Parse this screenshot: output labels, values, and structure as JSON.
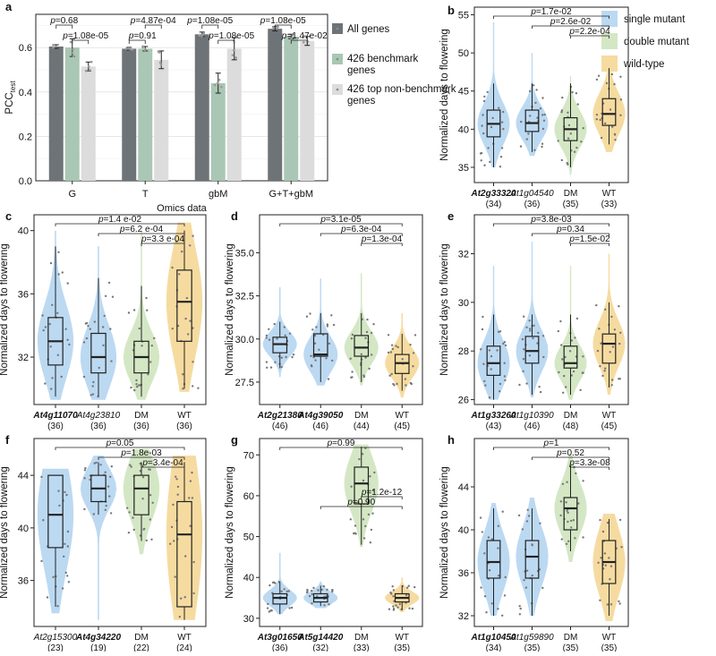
{
  "legend_right": {
    "items": [
      {
        "label": "single mutant",
        "color": "#bcd9f2"
      },
      {
        "label": "double mutant",
        "color": "#d4e7c4"
      },
      {
        "label": "wild-type",
        "color": "#f6dba0"
      }
    ]
  },
  "chart_data": [
    {
      "id": "a",
      "letter": "a",
      "type": "bar",
      "ylabel": "PCC",
      "ylabel_sub": "test",
      "xlabel": "Omics data",
      "ylim": [
        0,
        0.75
      ],
      "yticks": [
        "0.0",
        "0.2",
        "0.4",
        "0.6"
      ],
      "categories": [
        "G",
        "T",
        "gbM",
        "G+T+gbM"
      ],
      "series": [
        {
          "name": "All genes",
          "color": "#6e7378",
          "values": [
            0.605,
            0.595,
            0.66,
            0.685
          ],
          "err": [
            0.008,
            0.006,
            0.01,
            0.01
          ]
        },
        {
          "name": "426 benchmark genes",
          "color": "#a9c7b4",
          "values": [
            0.6,
            0.595,
            0.44,
            0.65
          ],
          "err": [
            0.04,
            0.01,
            0.045,
            0.01
          ]
        },
        {
          "name": "426 top non-benchmark genes",
          "color": "#dcdcdc",
          "values": [
            0.515,
            0.545,
            0.595,
            0.63
          ],
          "err": [
            0.02,
            0.04,
            0.05,
            0.02
          ]
        }
      ],
      "pvalues": [
        {
          "text": "p=0.68",
          "cat": 0,
          "from": 0,
          "to": 1,
          "level": 2
        },
        {
          "text": "p=1.08e-05",
          "cat": 0,
          "from": 1,
          "to": 2,
          "level": 1
        },
        {
          "text": "p=0.91",
          "cat": 1,
          "from": 0,
          "to": 1,
          "level": 1
        },
        {
          "text": "p=4.87e-04",
          "cat": 1,
          "from": 1,
          "to": 2,
          "level": 2
        },
        {
          "text": "p=1.08e-05",
          "cat": 2,
          "from": 0,
          "to": 1,
          "level": 2
        },
        {
          "text": "p=1.08e-05",
          "cat": 2,
          "from": 1,
          "to": 2,
          "level": 1
        },
        {
          "text": "p=1.08e-05",
          "cat": 3,
          "from": 0,
          "to": 1,
          "level": 2
        },
        {
          "text": "p=1.47e-02",
          "cat": 3,
          "from": 1,
          "to": 2,
          "level": 1
        }
      ]
    },
    {
      "id": "b",
      "letter": "b",
      "type": "violin",
      "ylabel": "Normalized days to flowering",
      "ylim": [
        33,
        56
      ],
      "yticks": [
        35,
        40,
        45,
        50,
        55
      ],
      "groups": [
        {
          "gene": "At2g33320",
          "bold": true,
          "n": "(34)",
          "kind": "single",
          "q1": 39,
          "median": 40.7,
          "q3": 42.5,
          "min": 35,
          "max": 46,
          "vmin": 35,
          "vmax": 54
        },
        {
          "gene": "At1g04540",
          "bold": false,
          "n": "(36)",
          "kind": "single",
          "q1": 39.7,
          "median": 40.8,
          "q3": 42.5,
          "min": 37,
          "max": 46,
          "vmin": 36.5,
          "vmax": 50
        },
        {
          "gene": "DM",
          "bold": false,
          "n": "(35)",
          "kind": "double",
          "q1": 38.5,
          "median": 40,
          "q3": 41.5,
          "min": 35,
          "max": 46,
          "vmin": 34,
          "vmax": 47
        },
        {
          "gene": "WT",
          "bold": false,
          "n": "(33)",
          "kind": "wt",
          "q1": 40.5,
          "median": 42,
          "q3": 44,
          "min": 38,
          "max": 48,
          "vmin": 37,
          "vmax": 49
        }
      ],
      "pvalues": [
        {
          "text": "p=1.7e-02",
          "from": 0,
          "to": 3,
          "row": 0
        },
        {
          "text": "p=2.6e-02",
          "from": 1,
          "to": 3,
          "row": 1
        },
        {
          "text": "p=2.2e-04",
          "from": 2,
          "to": 3,
          "row": 2
        }
      ]
    },
    {
      "id": "c",
      "letter": "c",
      "type": "violin",
      "ylabel": "Normalized days to flowering",
      "ylim": [
        29,
        41
      ],
      "yticks": [
        32,
        36,
        40
      ],
      "groups": [
        {
          "gene": "At4g11070",
          "bold": true,
          "n": "(36)",
          "kind": "single",
          "q1": 31.5,
          "median": 33,
          "q3": 34.5,
          "min": 29.5,
          "max": 39,
          "vmin": 29.3,
          "vmax": 40
        },
        {
          "gene": "At4g23810",
          "bold": false,
          "n": "(36)",
          "kind": "single",
          "q1": 31,
          "median": 32,
          "q3": 33.5,
          "min": 29.5,
          "max": 37,
          "vmin": 29.3,
          "vmax": 39
        },
        {
          "gene": "DM",
          "bold": false,
          "n": "(36)",
          "kind": "double",
          "q1": 31,
          "median": 32,
          "q3": 33,
          "min": 29.5,
          "max": 36.5,
          "vmin": 29.3,
          "vmax": 40
        },
        {
          "gene": "WT",
          "bold": false,
          "n": "(36)",
          "kind": "wt",
          "q1": 33,
          "median": 35.5,
          "q3": 37.5,
          "min": 30,
          "max": 40,
          "vmin": 29.8,
          "vmax": 40.5
        }
      ],
      "pvalues": [
        {
          "text": "p=1.4 e-02",
          "from": 0,
          "to": 3,
          "row": 0
        },
        {
          "text": "p=6.2 e-04",
          "from": 1,
          "to": 3,
          "row": 1
        },
        {
          "text": "p=3.3 e-04",
          "from": 2,
          "to": 3,
          "row": 2
        }
      ]
    },
    {
      "id": "d",
      "letter": "d",
      "type": "violin",
      "ylabel": "Normalized days to flowering",
      "ylim": [
        26.2,
        37.2
      ],
      "yticks": [
        27.5,
        30.0,
        32.5,
        35.0
      ],
      "groups": [
        {
          "gene": "At2g21380",
          "bold": true,
          "n": "(46)",
          "kind": "single",
          "q1": 29.2,
          "median": 29.7,
          "q3": 30.1,
          "min": 28.3,
          "max": 31,
          "vmin": 27.8,
          "vmax": 33
        },
        {
          "gene": "At4g39050",
          "bold": true,
          "n": "(46)",
          "kind": "single",
          "q1": 29,
          "median": 29.1,
          "q3": 30.3,
          "min": 27.5,
          "max": 31.5,
          "vmin": 27.3,
          "vmax": 33.5
        },
        {
          "gene": "DM",
          "bold": false,
          "n": "(44)",
          "kind": "double",
          "q1": 29,
          "median": 29.5,
          "q3": 30.2,
          "min": 27.5,
          "max": 31.5,
          "vmin": 27.3,
          "vmax": 33.8
        },
        {
          "gene": "WT",
          "bold": false,
          "n": "(45)",
          "kind": "wt",
          "q1": 28,
          "median": 28.6,
          "q3": 29.1,
          "min": 27,
          "max": 30.3,
          "vmin": 26.6,
          "vmax": 31.5
        }
      ],
      "pvalues": [
        {
          "text": "p=3.1e-05",
          "from": 0,
          "to": 3,
          "row": 0
        },
        {
          "text": "p=6.3e-04",
          "from": 1,
          "to": 3,
          "row": 1
        },
        {
          "text": "p=1.3e-04",
          "from": 2,
          "to": 3,
          "row": 2
        }
      ]
    },
    {
      "id": "e",
      "letter": "e",
      "type": "violin",
      "ylabel": "Normalized days to flowering",
      "ylim": [
        25.8,
        33.6
      ],
      "yticks": [
        26,
        28,
        30,
        32
      ],
      "groups": [
        {
          "gene": "At1g33260",
          "bold": true,
          "n": "(43)",
          "kind": "single",
          "q1": 27,
          "median": 27.5,
          "q3": 28.2,
          "min": 26,
          "max": 29.5,
          "vmin": 26,
          "vmax": 31.5
        },
        {
          "gene": "At1g10390",
          "bold": false,
          "n": "(46)",
          "kind": "single",
          "q1": 27.5,
          "median": 28,
          "q3": 28.6,
          "min": 26.2,
          "max": 29.5,
          "vmin": 26.1,
          "vmax": 32.5
        },
        {
          "gene": "DM",
          "bold": false,
          "n": "(48)",
          "kind": "double",
          "q1": 27.3,
          "median": 27.5,
          "q3": 28.2,
          "min": 26.2,
          "max": 29.5,
          "vmin": 26,
          "vmax": 31.5
        },
        {
          "gene": "WT",
          "bold": false,
          "n": "(45)",
          "kind": "wt",
          "q1": 27.5,
          "median": 28.3,
          "q3": 28.7,
          "min": 26.5,
          "max": 30,
          "vmin": 26.2,
          "vmax": 32
        }
      ],
      "pvalues": [
        {
          "text": "p=3.8e-03",
          "from": 0,
          "to": 3,
          "row": 0
        },
        {
          "text": "p=0.34",
          "from": 1,
          "to": 3,
          "row": 1
        },
        {
          "text": "p=1.5e-02",
          "from": 2,
          "to": 3,
          "row": 2
        }
      ]
    },
    {
      "id": "f",
      "letter": "f",
      "type": "violin",
      "ylabel": "Normalized days to flowering",
      "ylim": [
        32.5,
        46.8
      ],
      "yticks": [
        36,
        40,
        44
      ],
      "groups": [
        {
          "gene": "At2g15300",
          "bold": false,
          "n": "(23)",
          "kind": "single",
          "q1": 38.5,
          "median": 41,
          "q3": 44,
          "min": 34,
          "max": 44,
          "vmin": 33.5,
          "vmax": 44.5
        },
        {
          "gene": "At4g34220",
          "bold": true,
          "n": "(19)",
          "kind": "single",
          "q1": 42,
          "median": 43,
          "q3": 44,
          "min": 41,
          "max": 45,
          "vmin": 33,
          "vmax": 45.5
        },
        {
          "gene": "DM",
          "bold": false,
          "n": "(22)",
          "kind": "double",
          "q1": 41,
          "median": 43,
          "q3": 44,
          "min": 39,
          "max": 45,
          "vmin": 38,
          "vmax": 46
        },
        {
          "gene": "WT",
          "bold": false,
          "n": "(24)",
          "kind": "wt",
          "q1": 34,
          "median": 39.5,
          "q3": 42,
          "min": 33,
          "max": 45,
          "vmin": 33,
          "vmax": 45.5
        }
      ],
      "pvalues": [
        {
          "text": "p=0.05",
          "from": 0,
          "to": 3,
          "row": 0
        },
        {
          "text": "p=1.8e-03",
          "from": 1,
          "to": 3,
          "row": 1
        },
        {
          "text": "p=3.4e-04",
          "from": 2,
          "to": 3,
          "row": 2
        }
      ]
    },
    {
      "id": "g",
      "letter": "g",
      "type": "violin",
      "ylabel": "Normalized days to flowering",
      "ylim": [
        28,
        74
      ],
      "yticks": [
        30,
        40,
        50,
        60,
        70
      ],
      "groups": [
        {
          "gene": "At3g01650",
          "bold": true,
          "n": "(36)",
          "kind": "single",
          "q1": 33.5,
          "median": 35,
          "q3": 36,
          "min": 31,
          "max": 39,
          "vmin": 31,
          "vmax": 46
        },
        {
          "gene": "At5g14420",
          "bold": true,
          "n": "(32)",
          "kind": "single",
          "q1": 34,
          "median": 35,
          "q3": 36,
          "min": 33,
          "max": 38,
          "vmin": 32.5,
          "vmax": 39
        },
        {
          "gene": "DM",
          "bold": false,
          "n": "(33)",
          "kind": "double",
          "q1": 58,
          "median": 63,
          "q3": 67,
          "min": 48,
          "max": 72,
          "vmin": 47.5,
          "vmax": 72.5
        },
        {
          "gene": "WT",
          "bold": false,
          "n": "(35)",
          "kind": "wt",
          "q1": 34,
          "median": 35,
          "q3": 36,
          "min": 32,
          "max": 38,
          "vmin": 31.5,
          "vmax": 40
        }
      ],
      "pvalues": [
        {
          "text": "p=0.99",
          "from": 0,
          "to": 3,
          "row": 0
        },
        {
          "text": "p=1.2e-12",
          "from": 2,
          "to": 3,
          "row": 5
        },
        {
          "text": "p=0.90",
          "from": 1,
          "to": 3,
          "row": 6
        }
      ]
    },
    {
      "id": "h",
      "letter": "h",
      "type": "violin",
      "ylabel": "Normalized days to flowering",
      "ylim": [
        31,
        48.5
      ],
      "yticks": [
        32,
        36,
        40,
        44
      ],
      "groups": [
        {
          "gene": "At1g10450",
          "bold": true,
          "n": "(34)",
          "kind": "single",
          "q1": 35.5,
          "median": 37,
          "q3": 39,
          "min": 32,
          "max": 42,
          "vmin": 32,
          "vmax": 42.5
        },
        {
          "gene": "At1g59890",
          "bold": false,
          "n": "(35)",
          "kind": "single",
          "q1": 35.5,
          "median": 37.5,
          "q3": 39,
          "min": 32,
          "max": 42,
          "vmin": 32,
          "vmax": 43
        },
        {
          "gene": "DM",
          "bold": false,
          "n": "(35)",
          "kind": "double",
          "q1": 40,
          "median": 42,
          "q3": 43,
          "min": 38,
          "max": 46,
          "vmin": 37,
          "vmax": 47
        },
        {
          "gene": "WT",
          "bold": false,
          "n": "(35)",
          "kind": "wt",
          "q1": 35,
          "median": 37,
          "q3": 39,
          "min": 32,
          "max": 41,
          "vmin": 31.5,
          "vmax": 41.5
        }
      ],
      "pvalues": [
        {
          "text": "p=1",
          "from": 0,
          "to": 3,
          "row": 0
        },
        {
          "text": "p=0.52",
          "from": 1,
          "to": 3,
          "row": 1
        },
        {
          "text": "p=3.3e-08",
          "from": 2,
          "to": 3,
          "row": 2
        }
      ]
    }
  ]
}
